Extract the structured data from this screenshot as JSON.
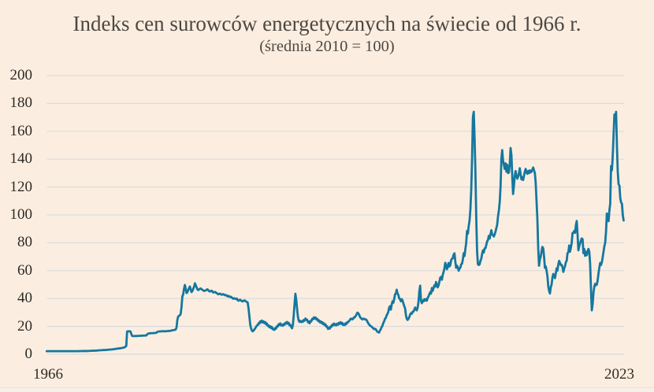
{
  "page": {
    "background_color": "#fbeee0",
    "bottom_strip_color": "#f7f0e9"
  },
  "chart_data": {
    "type": "line",
    "title": "Indeks cen surowców energetycznych na świecie od 1966 r.",
    "subtitle": "(średnia 2010 = 100)",
    "series": [
      {
        "name": "indeks cen surowców energetycznych",
        "start_year": 1966,
        "start_month": 1,
        "frequency": "monthly",
        "values": [
          2.2,
          2.2,
          2.2,
          2.2,
          2.2,
          2.2,
          2.2,
          2.2,
          2.2,
          2.2,
          2.2,
          2.2,
          2.2,
          2.2,
          2.2,
          2.2,
          2.2,
          2.2,
          2.2,
          2.2,
          2.2,
          2.2,
          2.2,
          2.2,
          2.2,
          2.2,
          2.2,
          2.2,
          2.2,
          2.2,
          2.2,
          2.2,
          2.2,
          2.2,
          2.2,
          2.2,
          2.2,
          2.2,
          2.2,
          2.25,
          2.25,
          2.25,
          2.25,
          2.3,
          2.3,
          2.3,
          2.3,
          2.3,
          2.3,
          2.35,
          2.35,
          2.4,
          2.4,
          2.45,
          2.45,
          2.5,
          2.5,
          2.55,
          2.55,
          2.6,
          2.65,
          2.7,
          2.75,
          2.8,
          2.85,
          2.9,
          2.9,
          2.95,
          3.0,
          3.0,
          3.05,
          3.1,
          3.15,
          3.2,
          3.25,
          3.3,
          3.35,
          3.4,
          3.45,
          3.5,
          3.6,
          3.7,
          3.8,
          3.9,
          4.0,
          4.05,
          4.1,
          4.2,
          4.3,
          4.4,
          4.5,
          4.6,
          4.8,
          5.0,
          5.4,
          6.0,
          16.3,
          16.4,
          16.45,
          16.4,
          16.35,
          14.6,
          13.2,
          13.05,
          13.0,
          13.05,
          13.1,
          13.1,
          13.1,
          13.15,
          13.2,
          13.2,
          13.25,
          13.3,
          13.3,
          13.35,
          13.4,
          13.4,
          13.45,
          13.5,
          14.3,
          14.7,
          14.9,
          15.0,
          15.05,
          15.1,
          15.1,
          15.15,
          15.2,
          15.25,
          15.3,
          15.4,
          16.0,
          16.25,
          16.3,
          16.4,
          16.4,
          16.45,
          16.5,
          16.5,
          16.45,
          16.45,
          16.5,
          16.55,
          16.6,
          16.65,
          16.7,
          16.75,
          16.85,
          17.0,
          17.15,
          17.3,
          17.4,
          17.45,
          17.7,
          19.0,
          24.5,
          27.0,
          27.6,
          27.9,
          29.0,
          34.0,
          41.5,
          43.0,
          47.0,
          49.7,
          47.0,
          43.9,
          44.5,
          46.0,
          47.5,
          48.6,
          46.5,
          44.6,
          45.5,
          47.0,
          48.5,
          50.9,
          49.5,
          48.0,
          46.5,
          46.0,
          46.5,
          47.0,
          47.2,
          46.6,
          46.2,
          45.8,
          45.4,
          45.6,
          45.8,
          46.3,
          46.6,
          45.9,
          45.2,
          45.0,
          45.4,
          45.6,
          44.9,
          44.3,
          44.5,
          44.7,
          44.3,
          43.8,
          43.4,
          43.0,
          43.3,
          43.5,
          43.1,
          42.7,
          42.9,
          43.1,
          42.7,
          42.3,
          42.5,
          42.1,
          41.5,
          41.9,
          41.4,
          41.0,
          41.3,
          40.7,
          40.1,
          39.8,
          40.2,
          39.9,
          39.6,
          39.9,
          38.9,
          38.4,
          38.8,
          39.1,
          38.6,
          38.1,
          37.9,
          38.3,
          38.7,
          38.3,
          37.9,
          37.5,
          37.1,
          33.0,
          27.5,
          21.5,
          18.6,
          17.1,
          16.4,
          16.9,
          17.8,
          18.6,
          19.6,
          20.6,
          20.85,
          22.25,
          21.95,
          23.65,
          22.95,
          24.15,
          22.75,
          23.55,
          22.35,
          23.05,
          21.45,
          22.05,
          20.35,
          20.65,
          19.35,
          20.15,
          18.75,
          19.45,
          17.85,
          18.15,
          17.45,
          18.85,
          18.45,
          20.15,
          19.95,
          21.55,
          20.95,
          22.15,
          20.65,
          21.15,
          20.45,
          21.65,
          21.15,
          22.55,
          21.95,
          23.15,
          21.85,
          22.55,
          20.75,
          21.15,
          19.55,
          18.6,
          21.0,
          28.0,
          36.0,
          43.4,
          39.0,
          32.5,
          27.0,
          24.0,
          23.2,
          23.85,
          23.05,
          23.75,
          23.25,
          24.65,
          24.05,
          25.65,
          24.75,
          24.85,
          22.95,
          23.45,
          22.15,
          23.85,
          23.65,
          25.35,
          25.05,
          26.45,
          25.65,
          26.35,
          24.95,
          25.45,
          23.95,
          24.35,
          22.95,
          23.65,
          22.35,
          23.05,
          21.65,
          22.25,
          20.85,
          21.35,
          19.75,
          19.95,
          18.15,
          18.95,
          18.35,
          19.95,
          19.65,
          21.25,
          20.75,
          22.05,
          20.85,
          21.55,
          20.75,
          21.95,
          21.25,
          22.55,
          21.85,
          23.05,
          21.75,
          22.45,
          20.95,
          21.65,
          20.95,
          22.25,
          21.65,
          23.05,
          23,
          23.8,
          24.5,
          25.5,
          25.5,
          25,
          25.5,
          26.5,
          26.5,
          27.5,
          28.5,
          29.8,
          29.5,
          28.5,
          27,
          26,
          25.5,
          25,
          25.5,
          25.5,
          25,
          25,
          24.5,
          23.4,
          22.2,
          21.4,
          20.6,
          20.2,
          19.8,
          19.2,
          18.6,
          18.0,
          18.3,
          17.9,
          16.9,
          16.1,
          15.8,
          15.6,
          17,
          18,
          19.5,
          20.5,
          22.5,
          23.5,
          25.5,
          26,
          28,
          29,
          30.5,
          33.5,
          34.5,
          32,
          35.5,
          38,
          37,
          39.5,
          43,
          43.5,
          46.3,
          43.5,
          42.5,
          40,
          39.5,
          38,
          39.5,
          38.5,
          36.5,
          34.5,
          33,
          28,
          25.5,
          24.6,
          25.4,
          26.5,
          28.5,
          29.5,
          29,
          30.5,
          30.5,
          32,
          33.5,
          32,
          31.5,
          33.5,
          37.5,
          45,
          49.2,
          38.5,
          36.6,
          38.5,
          38,
          39.5,
          38.5,
          39.5,
          38.5,
          40.5,
          41.5,
          43,
          44.5,
          43.5,
          47.5,
          45.5,
          47.5,
          49.5,
          48.5,
          51.8,
          50,
          48,
          49.5,
          52,
          55,
          55.5,
          53.5,
          57,
          59,
          61.5,
          65.6,
          64,
          61,
          62.5,
          65.5,
          63,
          64,
          67.5,
          68.5,
          69,
          71.5,
          72.4,
          66.5,
          62,
          63.5,
          62.5,
          59.9,
          61.5,
          62,
          64.5,
          65,
          68,
          72.5,
          70.5,
          75.5,
          80,
          88.5,
          86.5,
          92,
          96,
          104,
          118,
          140,
          170,
          174,
          155,
          131,
          98,
          74,
          64.5,
          64,
          64.5,
          67,
          68.5,
          72,
          74.5,
          73,
          76,
          76,
          78.5,
          81,
          82,
          85,
          83,
          86,
          89,
          86,
          85.5,
          84.5,
          86,
          88,
          90.5,
          93,
          99,
          103.0,
          109.0,
          120.0,
          140.0,
          146.5,
          139.0,
          136.0,
          133.0,
          137.0,
          131.0,
          136.0,
          130.0,
          130.5,
          136.0,
          148.0,
          143.0,
          128.0,
          115.0,
          121.0,
          128.0,
          131.5,
          128.0,
          126.0,
          127.5,
          130.0,
          133.5,
          129.0,
          125.5,
          127.0,
          125.0,
          128.0,
          131.0,
          133.0,
          130.5,
          129.5,
          131.5,
          130.0,
          132.0,
          130.5,
          131.0,
          132.5,
          134.0,
          132.0,
          130.0,
          123.0,
          110.0,
          97.0,
          76.0,
          63.5,
          68.0,
          70.0,
          74.0,
          77.0,
          76.0,
          70.0,
          62.0,
          63.0,
          60.0,
          56.0,
          49.0,
          45.5,
          43.6,
          48.0,
          50.1,
          55.0,
          57.6,
          56.5,
          54.6,
          58.0,
          61.6,
          60.0,
          64.6,
          67.0,
          65.6,
          64.0,
          64.1,
          62.5,
          59.1,
          61.5,
          63.1,
          66.0,
          67.1,
          72.5,
          73.1,
          78.0,
          73.6,
          76.5,
          80.1,
          87.0,
          87.1,
          88.5,
          87.1,
          92.5,
          95.6,
          86.0,
          74.6,
          77.5,
          79.6,
          81.5,
          83.1,
          82.5,
          72.6,
          75.5,
          70.6,
          73.5,
          71.1,
          74.0,
          75.6,
          73.5,
          65.0,
          47.0,
          31.5,
          36.0,
          44.0,
          48.5,
          50.5,
          49.5,
          50.0,
          53.0,
          58.0,
          62.0,
          65.5,
          64.0,
          66.0,
          69.5,
          73.5,
          77.5,
          80.0,
          88.0,
          101.0,
          99.5,
          95.5,
          103,
          108,
          135,
          132,
          142,
          157,
          172,
          168.5,
          174,
          150,
          131,
          122,
          121,
          112,
          109,
          108,
          100,
          96
        ]
      }
    ],
    "x": {
      "min": 1966.0,
      "max": 2023.5,
      "tick_labels": [
        "1966",
        "2023"
      ]
    },
    "y": {
      "min": 0,
      "max": 200,
      "tick_step": 20,
      "tick_labels": [
        "0",
        "20",
        "40",
        "60",
        "80",
        "100",
        "120",
        "140",
        "160",
        "180",
        "200"
      ]
    },
    "grid": "horizontal",
    "legend": "none",
    "colors": {
      "line": "#15779f",
      "grid": "#d9dbde",
      "title_text": "#4d4742",
      "tick_text": "#2e2a26"
    }
  }
}
